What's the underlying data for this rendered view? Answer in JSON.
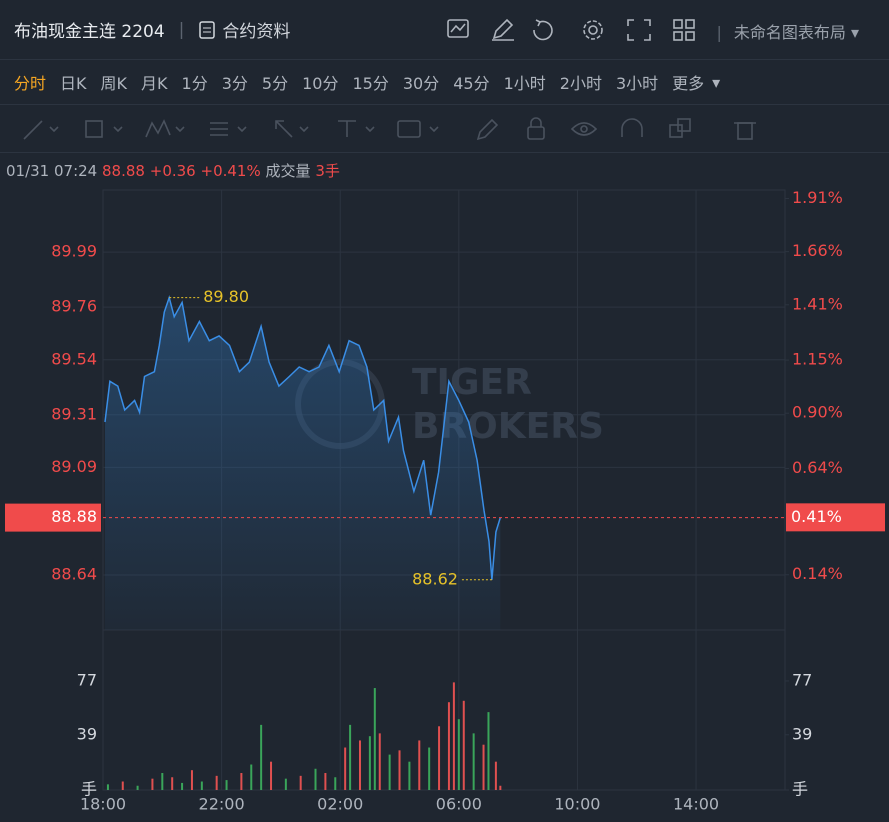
{
  "header": {
    "title": "布油现金主连 2204",
    "contract": "合约资料",
    "layout": "未命名图表布局"
  },
  "tabs": [
    "分时",
    "日K",
    "周K",
    "月K",
    "1分",
    "3分",
    "5分",
    "10分",
    "15分",
    "30分",
    "45分",
    "1小时",
    "2小时",
    "3小时",
    "更多"
  ],
  "active_tab": 0,
  "info": {
    "datetime": "01/31 07:24",
    "price": 88.88,
    "change": "+0.36",
    "change_pct": "+0.41%",
    "volume_label": "成交量",
    "volume": "3手"
  },
  "chart_data": [
    {
      "type": "line",
      "color": "#3a8ee6",
      "grid": true,
      "watermark": [
        "TIGER",
        "BROKERS"
      ],
      "x": [
        "18:04",
        "18:14",
        "18:30",
        "18:44",
        "19:04",
        "19:14",
        "19:24",
        "19:44",
        "19:54",
        "20:04",
        "20:14",
        "20:24",
        "20:40",
        "20:54",
        "21:15",
        "21:35",
        "21:55",
        "22:16",
        "22:36",
        "22:56",
        "23:20",
        "23:36",
        "23:56",
        "00:17",
        "00:37",
        "00:57",
        "01:17",
        "01:37",
        "01:58",
        "02:18",
        "02:38",
        "02:54",
        "03:08",
        "03:28",
        "03:38",
        "03:58",
        "04:08",
        "04:29",
        "04:49",
        "05:03",
        "05:19",
        "05:40",
        "06:00",
        "06:20",
        "06:37",
        "06:51",
        "07:01",
        "07:07",
        "07:15",
        "07:24"
      ],
      "values": [
        89.28,
        89.45,
        89.43,
        89.33,
        89.37,
        89.32,
        89.47,
        89.49,
        89.6,
        89.74,
        89.8,
        89.72,
        89.78,
        89.62,
        89.7,
        89.62,
        89.64,
        89.6,
        89.49,
        89.53,
        89.68,
        89.53,
        89.43,
        89.47,
        89.51,
        89.49,
        89.51,
        89.6,
        89.49,
        89.62,
        89.6,
        89.51,
        89.33,
        89.37,
        89.2,
        89.3,
        89.16,
        88.99,
        89.12,
        88.89,
        89.07,
        89.45,
        89.37,
        89.28,
        89.12,
        88.91,
        88.78,
        88.62,
        88.82,
        88.88
      ],
      "xlim": [
        "18:00",
        "17:00"
      ],
      "ylim": [
        88.41,
        90.25
      ],
      "yticks": [
        88.64,
        89.09,
        89.31,
        89.54,
        89.76,
        89.99
      ],
      "y2lim": [
        -0.12,
        1.95
      ],
      "y2ticks": [
        {
          "value": 0.14,
          "label": "0.14%"
        },
        {
          "value": 0.64,
          "label": "0.64%"
        },
        {
          "value": 0.9,
          "label": "0.90%"
        },
        {
          "value": 1.15,
          "label": "1.15%"
        },
        {
          "value": 1.41,
          "label": "1.41%"
        },
        {
          "value": 1.66,
          "label": "1.66%"
        },
        {
          "value": 1.91,
          "label": "1.91%"
        }
      ],
      "last": {
        "value": 88.88,
        "y2": {
          "value": 0.41,
          "label": "0.41%"
        },
        "color": "#f04b4b"
      },
      "annotations": [
        {
          "x": "20:14",
          "value": 89.8,
          "label": "89.80"
        },
        {
          "x": "07:07",
          "value": 88.62,
          "label": "88.62"
        }
      ]
    },
    {
      "type": "bar",
      "x": [
        "18:10",
        "18:40",
        "19:10",
        "19:40",
        "20:00",
        "20:20",
        "20:40",
        "21:00",
        "21:20",
        "21:50",
        "22:10",
        "22:40",
        "23:00",
        "23:20",
        "23:40",
        "00:10",
        "00:40",
        "01:10",
        "01:30",
        "01:50",
        "02:10",
        "02:20",
        "02:40",
        "03:00",
        "03:10",
        "03:20",
        "03:40",
        "04:00",
        "04:20",
        "04:40",
        "05:00",
        "05:20",
        "05:40",
        "05:50",
        "06:00",
        "06:10",
        "06:30",
        "06:50",
        "07:00",
        "07:15",
        "07:24"
      ],
      "values": [
        4,
        6,
        3,
        8,
        12,
        9,
        5,
        14,
        6,
        10,
        7,
        12,
        18,
        46,
        20,
        8,
        10,
        15,
        12,
        9,
        30,
        46,
        35,
        38,
        72,
        40,
        25,
        28,
        20,
        35,
        30,
        45,
        62,
        76,
        50,
        63,
        40,
        32,
        55,
        20,
        3
      ],
      "colors": [
        "#3aa55a",
        "#e05050",
        "#3aa55a",
        "#e05050",
        "#3aa55a",
        "#e05050",
        "#3aa55a",
        "#e05050",
        "#3aa55a",
        "#e05050",
        "#3aa55a",
        "#e05050",
        "#3aa55a",
        "#3aa55a",
        "#e05050",
        "#3aa55a",
        "#e05050",
        "#3aa55a",
        "#e05050",
        "#3aa55a",
        "#e05050",
        "#3aa55a",
        "#e05050",
        "#3aa55a",
        "#3aa55a",
        "#e05050",
        "#3aa55a",
        "#e05050",
        "#3aa55a",
        "#e05050",
        "#3aa55a",
        "#e05050",
        "#e05050",
        "#e05050",
        "#3aa55a",
        "#e05050",
        "#3aa55a",
        "#e05050",
        "#3aa55a",
        "#e05050",
        "#e05050"
      ],
      "xlim": [
        "18:00",
        "17:00"
      ],
      "xticks": [
        "18:00",
        "22:00",
        "02:00",
        "06:00",
        "10:00",
        "14:00"
      ],
      "ylim": [
        0,
        113
      ],
      "yticks": [
        {
          "value": 0,
          "label": "手"
        },
        39,
        77
      ]
    }
  ]
}
